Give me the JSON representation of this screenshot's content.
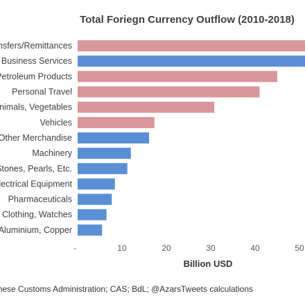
{
  "chart_data": {
    "type": "bar",
    "orientation": "horizontal",
    "title": "Total  Foriegn Currency Outflow (2010-2018)",
    "xlabel": "Billion USD",
    "ylabel": "",
    "categories": [
      "Transfers/Remittances",
      "Business Services",
      "Petroleum Products",
      "Personal Travel",
      "Animals, Vegetables",
      "Vehicles",
      "Other Merchandise",
      "Machinery",
      "Stones, Pearls, Etc.",
      "Electrical Equipment",
      "Pharmaceuticals",
      "Clothing, Watches",
      "Aluminium, Copper"
    ],
    "values": [
      53,
      52.5,
      45,
      41,
      30.8,
      17.3,
      16.1,
      12,
      11.2,
      8.4,
      7.7,
      6.5,
      5.5
    ],
    "bar_colors": [
      "#d9969b",
      "#5b8fd5",
      "#d9969b",
      "#d9969b",
      "#d9969b",
      "#d9969b",
      "#5b8fd5",
      "#5b8fd5",
      "#5b8fd5",
      "#5b8fd5",
      "#5b8fd5",
      "#5b8fd5",
      "#5b8fd5"
    ],
    "xlim": [
      0,
      53
    ],
    "xticks": [
      "-",
      "10",
      "20",
      "30",
      "40",
      "50"
    ],
    "grid": false,
    "legend": "none"
  },
  "colors": {
    "pink": "#d9969b",
    "blue": "#5b8fd5"
  },
  "source": "Lebanese Customs Administration; CAS; BdL; @AzarsTweets calculations"
}
